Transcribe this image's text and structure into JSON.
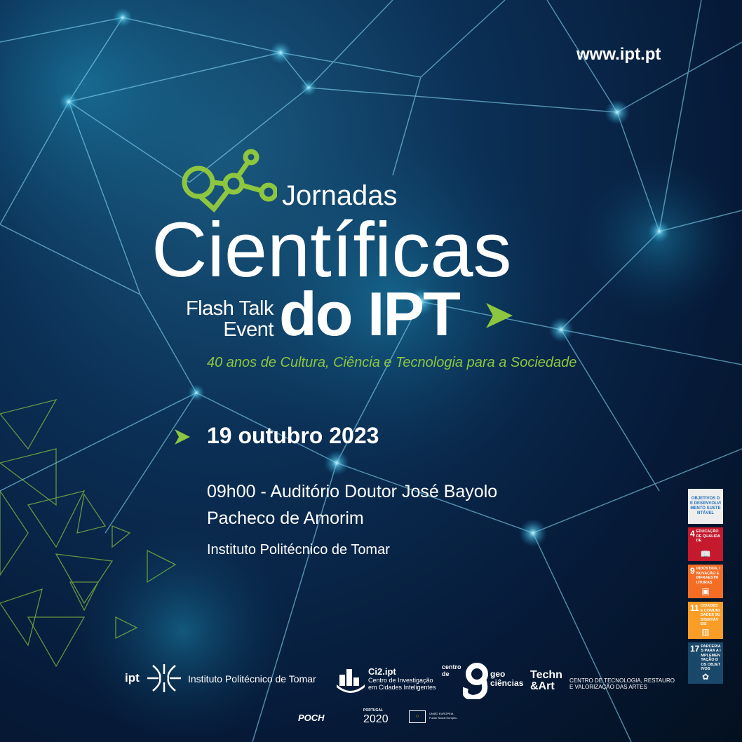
{
  "header": {
    "url": "www.ipt.pt"
  },
  "title": {
    "line1": "Jornadas",
    "line2": "Científicas",
    "line3": "do IPT",
    "flash_line1": "Flash Talk",
    "flash_line2": "Event",
    "tagline": "40 anos de Cultura, Ciência e Tecnologia para a Sociedade"
  },
  "event": {
    "date": "19 outubro 2023",
    "time_place_line1": "09h00 - Auditório Doutor José Bayolo",
    "time_place_line2": "Pacheco de Amorim",
    "institution": "Instituto Politécnico de Tomar"
  },
  "sdg": {
    "header": "OBJETIVOS DE DESENVOLVIMENTO SUSTENTÁVEL",
    "items": [
      {
        "number": "4",
        "label": "EDUCAÇÃO DE QUALIDADE",
        "icon": "book-pencil-icon",
        "color": "#c5192d"
      },
      {
        "number": "9",
        "label": "INDÚSTRIA, INOVAÇÃO E INFRAESTRUTURAS",
        "icon": "cubes-icon",
        "color": "#f36d25"
      },
      {
        "number": "11",
        "label": "CIDADES E COMUNIDADES SUSTENTÁVEIS",
        "icon": "buildings-icon",
        "color": "#f99d26"
      },
      {
        "number": "17",
        "label": "PARCERIAS PARA A IMPLEMENTAÇÃO DOS OBJETIVOS",
        "icon": "flower-rings-icon",
        "color": "#19486a"
      }
    ]
  },
  "footer": {
    "ipt": {
      "abbr": "ipt",
      "name": "Instituto Politécnico de Tomar"
    },
    "ci2": {
      "name": "Ci2.ipt",
      "line1": "Centro de Investigação",
      "line2": "em Cidades Inteligentes"
    },
    "geo": {
      "pre": "centro de",
      "line1": "geo",
      "line2": "ciências"
    },
    "techn": {
      "line1": "Techn",
      "line2": "&Art",
      "desc1": "CENTRO DE TECNOLOGIA, RESTAURO",
      "desc2": "E VALORIZAÇÃO DAS ARTES"
    },
    "funders": {
      "poch": "POCH",
      "portugal": "PORTUGAL",
      "p2020": "2020",
      "eu": "UNIÃO EUROPEIA",
      "eu_fund": "Fundo Social Europeu"
    }
  },
  "colors": {
    "accent_green": "#8dc63f",
    "background": "#061a38"
  }
}
